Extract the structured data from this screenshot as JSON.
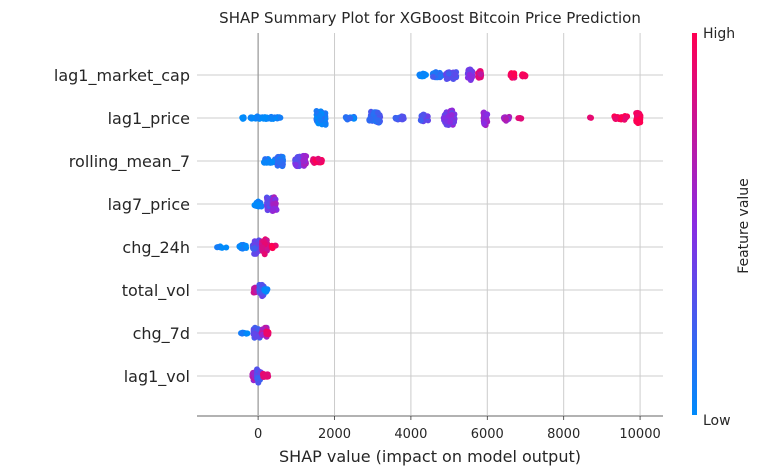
{
  "chart_data": {
    "type": "scatter",
    "title": "SHAP Summary Plot for XGBoost Bitcoin Price Prediction",
    "xlabel": "SHAP value (impact on model output)",
    "xlim": [
      -1600,
      10600
    ],
    "x_ticks": [
      "0",
      "2000",
      "4000",
      "6000",
      "8000",
      "10000"
    ],
    "x_tick_values": [
      0,
      2000,
      4000,
      6000,
      8000,
      10000
    ],
    "grid": true,
    "colorbar": {
      "label": "Feature value",
      "high": "High",
      "low": "Low",
      "low_color": "#008bfb",
      "mid_color": "#8a2be2",
      "high_color": "#ff0052"
    },
    "features": [
      {
        "name": "lag1_market_cap",
        "clusters": [
          {
            "center": 4300,
            "width": 200,
            "count": 14,
            "spread": 0.1,
            "color": 0.05
          },
          {
            "center": 4700,
            "width": 300,
            "count": 30,
            "spread": 0.18,
            "color": 0.15
          },
          {
            "center": 5050,
            "width": 280,
            "count": 40,
            "spread": 0.22,
            "color": 0.3
          },
          {
            "center": 5550,
            "width": 120,
            "count": 40,
            "spread": 0.28,
            "color": 0.45
          },
          {
            "center": 5800,
            "width": 100,
            "count": 16,
            "spread": 0.2,
            "color": 0.8
          },
          {
            "center": 6650,
            "width": 120,
            "count": 12,
            "spread": 0.14,
            "color": 0.95
          },
          {
            "center": 6950,
            "width": 100,
            "count": 12,
            "spread": 0.14,
            "color": 0.98
          }
        ]
      },
      {
        "name": "lag1_price",
        "clusters": [
          {
            "center": -400,
            "width": 60,
            "count": 4,
            "spread": 0.05,
            "color": 0.0
          },
          {
            "center": 200,
            "width": 800,
            "count": 40,
            "spread": 0.08,
            "color": 0.02
          },
          {
            "center": 1650,
            "width": 250,
            "count": 70,
            "spread": 0.38,
            "color": 0.06
          },
          {
            "center": 2400,
            "width": 250,
            "count": 16,
            "spread": 0.08,
            "color": 0.1
          },
          {
            "center": 3050,
            "width": 300,
            "count": 50,
            "spread": 0.32,
            "color": 0.2
          },
          {
            "center": 3700,
            "width": 250,
            "count": 16,
            "spread": 0.1,
            "color": 0.25
          },
          {
            "center": 4350,
            "width": 200,
            "count": 30,
            "spread": 0.22,
            "color": 0.32
          },
          {
            "center": 5000,
            "width": 300,
            "count": 60,
            "spread": 0.4,
            "color": 0.45
          },
          {
            "center": 5950,
            "width": 100,
            "count": 28,
            "spread": 0.4,
            "color": 0.55
          },
          {
            "center": 6500,
            "width": 150,
            "count": 14,
            "spread": 0.14,
            "color": 0.6
          },
          {
            "center": 6850,
            "width": 100,
            "count": 6,
            "spread": 0.08,
            "color": 0.85
          },
          {
            "center": 8700,
            "width": 60,
            "count": 2,
            "spread": 0.04,
            "color": 0.95
          },
          {
            "center": 9500,
            "width": 350,
            "count": 40,
            "spread": 0.1,
            "color": 0.97
          },
          {
            "center": 9950,
            "width": 120,
            "count": 40,
            "spread": 0.28,
            "color": 1.0
          }
        ]
      },
      {
        "name": "rolling_mean_7",
        "clusters": [
          {
            "center": 350,
            "width": 400,
            "count": 36,
            "spread": 0.12,
            "color": 0.05
          },
          {
            "center": 580,
            "width": 150,
            "count": 40,
            "spread": 0.3,
            "color": 0.15
          },
          {
            "center": 1030,
            "width": 120,
            "count": 30,
            "spread": 0.3,
            "color": 0.4
          },
          {
            "center": 1220,
            "width": 80,
            "count": 24,
            "spread": 0.3,
            "color": 0.6
          },
          {
            "center": 1550,
            "width": 250,
            "count": 30,
            "spread": 0.12,
            "color": 0.95
          }
        ]
      },
      {
        "name": "lag7_price",
        "clusters": [
          {
            "center": 0,
            "width": 200,
            "count": 26,
            "spread": 0.18,
            "color": 0.05
          },
          {
            "center": 300,
            "width": 160,
            "count": 30,
            "spread": 0.36,
            "color": 0.35
          },
          {
            "center": 430,
            "width": 120,
            "count": 24,
            "spread": 0.42,
            "color": 0.55
          }
        ]
      },
      {
        "name": "chg_24h",
        "clusters": [
          {
            "center": -950,
            "width": 250,
            "count": 6,
            "spread": 0.05,
            "color": 0.0
          },
          {
            "center": -400,
            "width": 200,
            "count": 18,
            "spread": 0.12,
            "color": 0.05
          },
          {
            "center": -60,
            "width": 160,
            "count": 40,
            "spread": 0.35,
            "color": 0.3
          },
          {
            "center": 170,
            "width": 150,
            "count": 36,
            "spread": 0.4,
            "color": 0.8
          },
          {
            "center": 400,
            "width": 140,
            "count": 8,
            "spread": 0.1,
            "color": 0.95
          }
        ]
      },
      {
        "name": "total_vol",
        "clusters": [
          {
            "center": -50,
            "width": 150,
            "count": 26,
            "spread": 0.2,
            "color": 0.75
          },
          {
            "center": 90,
            "width": 120,
            "count": 40,
            "spread": 0.35,
            "color": 0.3
          },
          {
            "center": 200,
            "width": 100,
            "count": 10,
            "spread": 0.1,
            "color": 0.02
          }
        ]
      },
      {
        "name": "chg_7d",
        "clusters": [
          {
            "center": -350,
            "width": 200,
            "count": 10,
            "spread": 0.05,
            "color": 0.02
          },
          {
            "center": -40,
            "width": 160,
            "count": 36,
            "spread": 0.28,
            "color": 0.3
          },
          {
            "center": 160,
            "width": 140,
            "count": 30,
            "spread": 0.3,
            "color": 0.65
          },
          {
            "center": 250,
            "width": 80,
            "count": 8,
            "spread": 0.1,
            "color": 0.95
          }
        ]
      },
      {
        "name": "lag1_vol",
        "clusters": [
          {
            "center": -80,
            "width": 150,
            "count": 26,
            "spread": 0.22,
            "color": 0.65
          },
          {
            "center": 20,
            "width": 120,
            "count": 40,
            "spread": 0.36,
            "color": 0.3
          },
          {
            "center": 200,
            "width": 150,
            "count": 12,
            "spread": 0.1,
            "color": 0.9
          }
        ]
      }
    ]
  }
}
